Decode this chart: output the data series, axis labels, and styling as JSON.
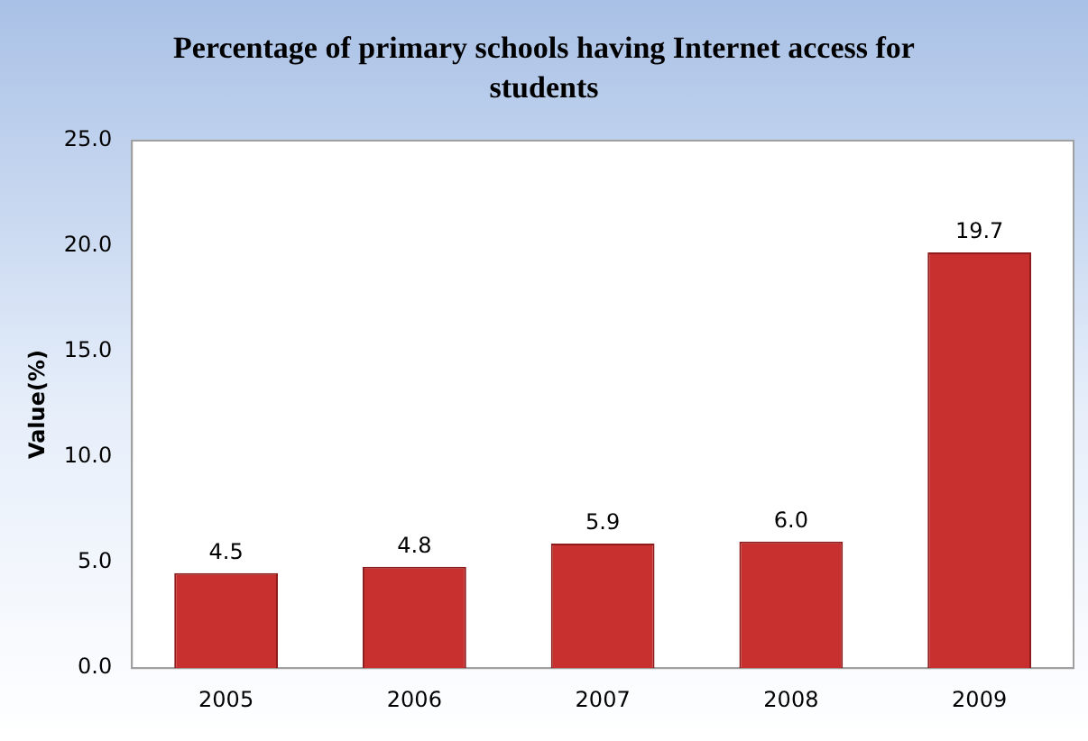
{
  "chart_data": {
    "type": "bar",
    "title": "Percentage of primary schools having Internet access for students",
    "ylabel": "Value(%)",
    "categories": [
      "2005",
      "2006",
      "2007",
      "2008",
      "2009"
    ],
    "values": [
      4.5,
      4.8,
      5.9,
      6.0,
      19.7
    ],
    "value_labels": [
      "4.5",
      "4.8",
      "5.9",
      "6.0",
      "19.7"
    ],
    "color": "#c8302f",
    "ylim": [
      0,
      25
    ],
    "yticks": [
      {
        "value": 0,
        "label": "0.0"
      },
      {
        "value": 5,
        "label": "5.0"
      },
      {
        "value": 10,
        "label": "10.0"
      },
      {
        "value": 15,
        "label": "15.0"
      },
      {
        "value": 20,
        "label": "20.0"
      },
      {
        "value": 25,
        "label": "25.0"
      }
    ],
    "grid": false,
    "legend": false
  }
}
